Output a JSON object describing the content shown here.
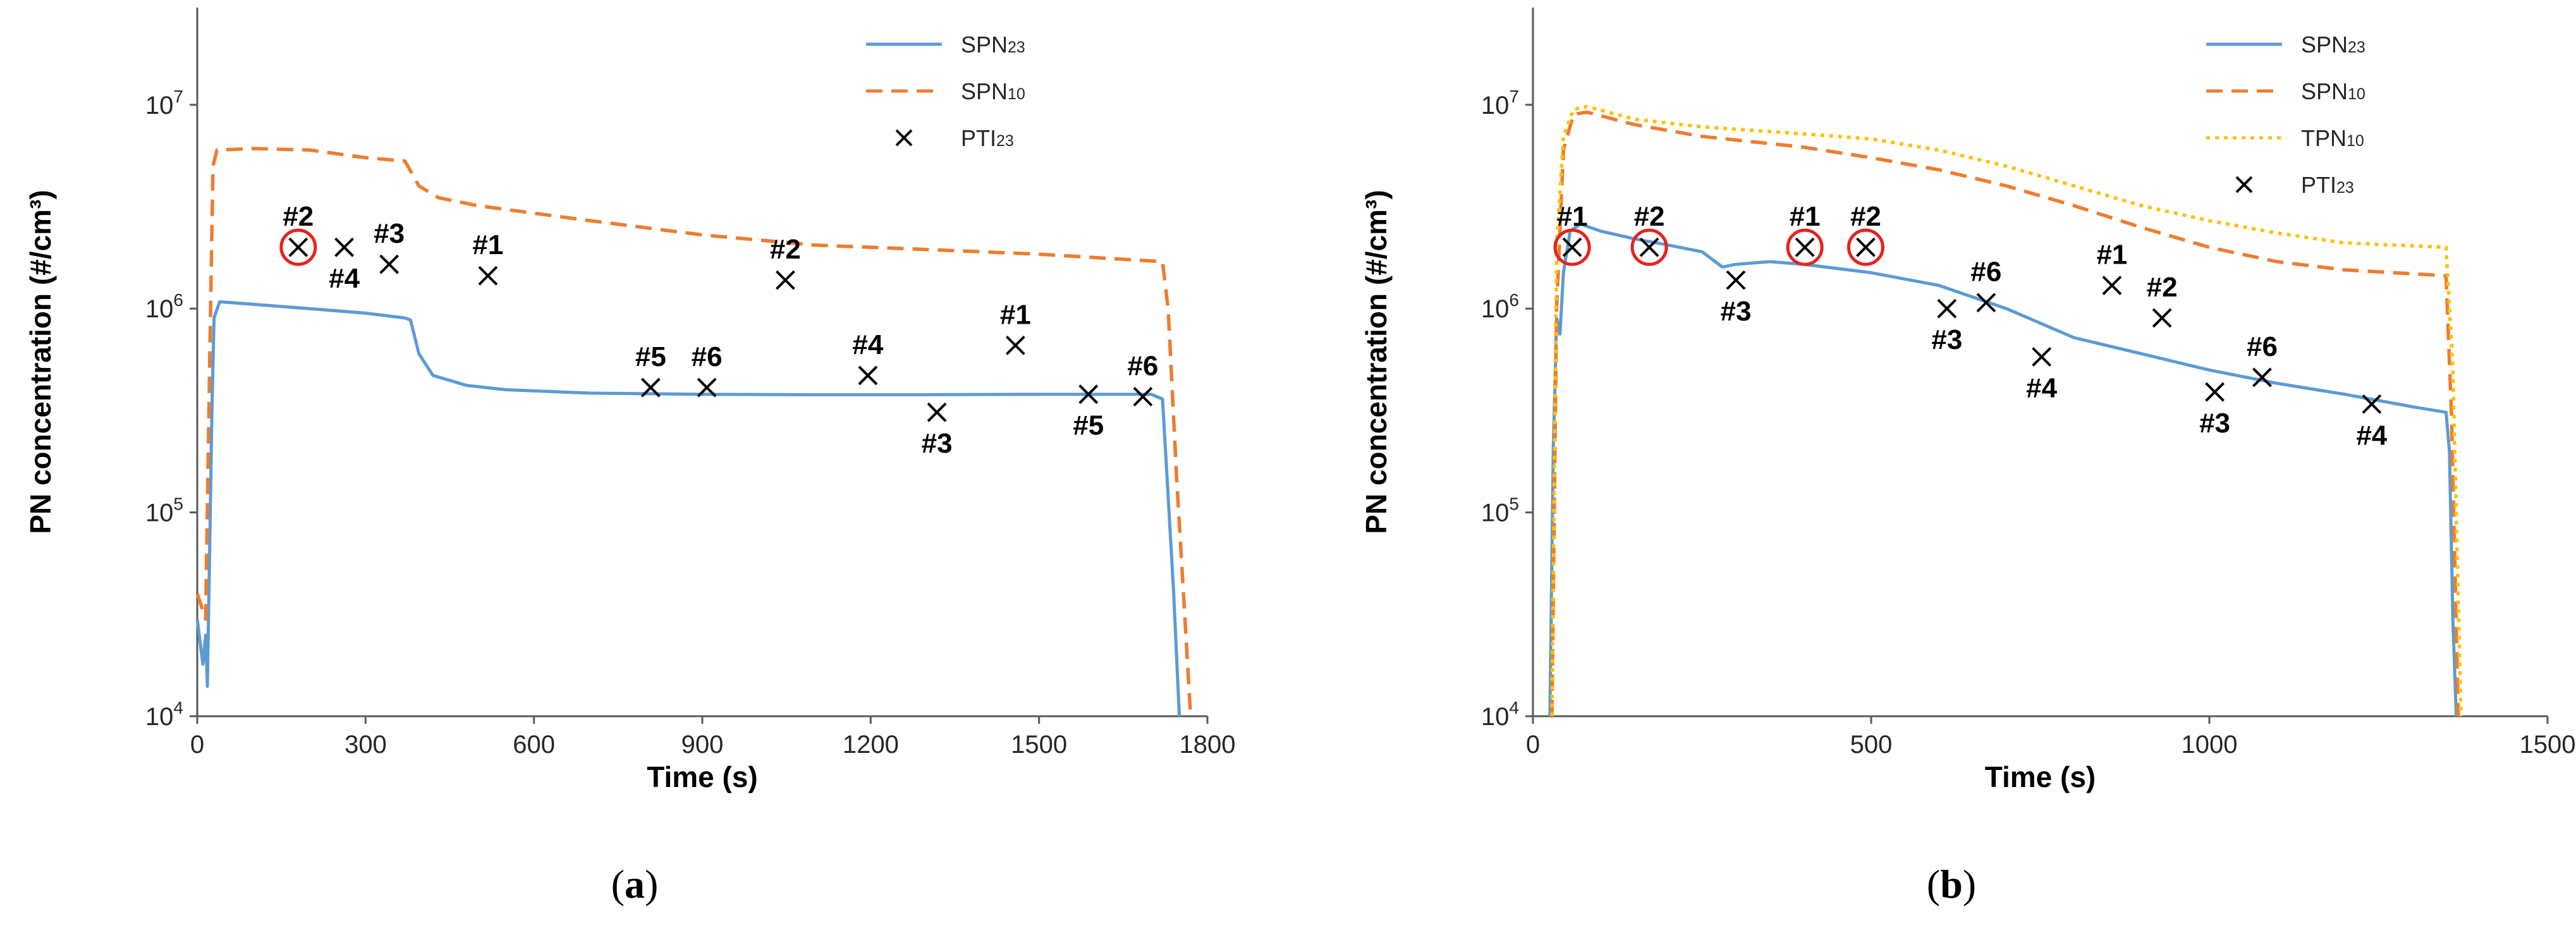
{
  "chart_data": [
    {
      "type": "line",
      "panel_label": "a",
      "xlabel": "Time (s)",
      "ylabel": "PN concentration (#/cm³)",
      "xlim": [
        0,
        1800
      ],
      "ylim": [
        10000,
        30000000
      ],
      "yscale": "log",
      "x_ticks": [
        0,
        300,
        600,
        900,
        1200,
        1500,
        1800
      ],
      "y_ticks": [
        10000,
        100000,
        1000000,
        10000000
      ],
      "y_tick_labels": [
        {
          "base": "10",
          "exp": "4"
        },
        {
          "base": "10",
          "exp": "5"
        },
        {
          "base": "10",
          "exp": "6"
        },
        {
          "base": "10",
          "exp": "7"
        }
      ],
      "legend": [
        {
          "key": "spn23",
          "main": "SPN",
          "sub": "23"
        },
        {
          "key": "spn10",
          "main": "SPN",
          "sub": "10"
        },
        {
          "key": "pti23",
          "main": "PTI",
          "sub": "23"
        }
      ],
      "series": [
        {
          "name": "SPN23",
          "key": "spn23",
          "color": "#5b9bd5",
          "style": "solid",
          "points": [
            [
              0,
              30000
            ],
            [
              10,
              18000
            ],
            [
              15,
              25000
            ],
            [
              18,
              14000
            ],
            [
              22,
              60000
            ],
            [
              26,
              300000
            ],
            [
              30,
              900000
            ],
            [
              40,
              1080000
            ],
            [
              100,
              1050000
            ],
            [
              200,
              1000000
            ],
            [
              300,
              950000
            ],
            [
              370,
              900000
            ],
            [
              380,
              880000
            ],
            [
              395,
              600000
            ],
            [
              420,
              470000
            ],
            [
              480,
              420000
            ],
            [
              550,
              400000
            ],
            [
              700,
              385000
            ],
            [
              900,
              380000
            ],
            [
              1100,
              378000
            ],
            [
              1300,
              378000
            ],
            [
              1500,
              380000
            ],
            [
              1650,
              380000
            ],
            [
              1700,
              380000
            ],
            [
              1720,
              360000
            ],
            [
              1728,
              150000
            ],
            [
              1740,
              40000
            ],
            [
              1750,
              10000
            ]
          ]
        },
        {
          "name": "SPN10",
          "key": "spn10",
          "color": "#ed7d31",
          "style": "dashed",
          "points": [
            [
              0,
              40000
            ],
            [
              15,
              30000
            ],
            [
              22,
              500000
            ],
            [
              28,
              5000000
            ],
            [
              35,
              6000000
            ],
            [
              100,
              6100000
            ],
            [
              200,
              6000000
            ],
            [
              300,
              5500000
            ],
            [
              370,
              5300000
            ],
            [
              395,
              4000000
            ],
            [
              430,
              3500000
            ],
            [
              500,
              3200000
            ],
            [
              700,
              2700000
            ],
            [
              900,
              2300000
            ],
            [
              1100,
              2050000
            ],
            [
              1300,
              1950000
            ],
            [
              1500,
              1850000
            ],
            [
              1720,
              1700000
            ],
            [
              1730,
              1000000
            ],
            [
              1745,
              150000
            ],
            [
              1760,
              30000
            ],
            [
              1770,
              10000
            ]
          ]
        }
      ],
      "markers": [
        {
          "x": 180,
          "y": 2000000,
          "label": "#2",
          "circled": true
        },
        {
          "x": 262,
          "y": 2000000,
          "label": "#4",
          "circled": false
        },
        {
          "x": 342,
          "y": 1650000,
          "label": "#3",
          "circled": false
        },
        {
          "x": 518,
          "y": 1450000,
          "label": "#1",
          "circled": false
        },
        {
          "x": 808,
          "y": 410000,
          "label": "#5",
          "circled": false
        },
        {
          "x": 908,
          "y": 410000,
          "label": "#6",
          "circled": false
        },
        {
          "x": 1048,
          "y": 1380000,
          "label": "#2",
          "circled": false
        },
        {
          "x": 1195,
          "y": 470000,
          "label": "#4",
          "circled": false
        },
        {
          "x": 1318,
          "y": 310000,
          "label": "#3",
          "circled": false
        },
        {
          "x": 1458,
          "y": 660000,
          "label": "#1",
          "circled": false
        },
        {
          "x": 1588,
          "y": 380000,
          "label": "#5",
          "circled": false
        },
        {
          "x": 1685,
          "y": 370000,
          "label": "#6",
          "circled": false
        }
      ]
    },
    {
      "type": "line",
      "panel_label": "b",
      "xlabel": "Time (s)",
      "ylabel": "PN concentration (#/cm³)",
      "xlim": [
        0,
        1500
      ],
      "ylim": [
        10000,
        30000000
      ],
      "yscale": "log",
      "x_ticks": [
        0,
        500,
        1000,
        1500
      ],
      "y_ticks": [
        10000,
        100000,
        1000000,
        10000000
      ],
      "y_tick_labels": [
        {
          "base": "10",
          "exp": "4"
        },
        {
          "base": "10",
          "exp": "5"
        },
        {
          "base": "10",
          "exp": "6"
        },
        {
          "base": "10",
          "exp": "7"
        }
      ],
      "legend": [
        {
          "key": "spn23",
          "main": "SPN",
          "sub": "23"
        },
        {
          "key": "spn10",
          "main": "SPN",
          "sub": "10"
        },
        {
          "key": "tpn10",
          "main": "TPN",
          "sub": "10"
        },
        {
          "key": "pti23",
          "main": "PTI",
          "sub": "23"
        }
      ],
      "series": [
        {
          "name": "SPN23",
          "key": "spn23",
          "color": "#5b9bd5",
          "style": "solid",
          "points": [
            [
              25,
              10000
            ],
            [
              30,
              200000
            ],
            [
              35,
              900000
            ],
            [
              40,
              750000
            ],
            [
              45,
              1500000
            ],
            [
              55,
              2400000
            ],
            [
              70,
              2600000
            ],
            [
              100,
              2400000
            ],
            [
              150,
              2200000
            ],
            [
              200,
              2050000
            ],
            [
              250,
              1900000
            ],
            [
              280,
              1600000
            ],
            [
              300,
              1650000
            ],
            [
              350,
              1700000
            ],
            [
              400,
              1650000
            ],
            [
              500,
              1500000
            ],
            [
              600,
              1300000
            ],
            [
              700,
              1000000
            ],
            [
              800,
              720000
            ],
            [
              900,
              600000
            ],
            [
              1000,
              500000
            ],
            [
              1100,
              430000
            ],
            [
              1200,
              380000
            ],
            [
              1300,
              330000
            ],
            [
              1350,
              310000
            ],
            [
              1355,
              200000
            ],
            [
              1360,
              30000
            ],
            [
              1365,
              10000
            ]
          ]
        },
        {
          "name": "SPN10",
          "key": "spn10",
          "color": "#ed7d31",
          "style": "dashed",
          "points": [
            [
              28,
              10000
            ],
            [
              35,
              1000000
            ],
            [
              45,
              6000000
            ],
            [
              60,
              9000000
            ],
            [
              80,
              9200000
            ],
            [
              150,
              8000000
            ],
            [
              250,
              7000000
            ],
            [
              400,
              6200000
            ],
            [
              500,
              5500000
            ],
            [
              600,
              4800000
            ],
            [
              700,
              4000000
            ],
            [
              800,
              3200000
            ],
            [
              900,
              2500000
            ],
            [
              1000,
              2000000
            ],
            [
              1100,
              1700000
            ],
            [
              1200,
              1550000
            ],
            [
              1350,
              1450000
            ],
            [
              1358,
              300000
            ],
            [
              1368,
              10000
            ]
          ]
        },
        {
          "name": "TPN10",
          "key": "tpn10",
          "color": "#ffc000",
          "style": "dotted",
          "points": [
            [
              28,
              10000
            ],
            [
              35,
              2000000
            ],
            [
              45,
              7000000
            ],
            [
              60,
              9500000
            ],
            [
              80,
              9800000
            ],
            [
              150,
              8500000
            ],
            [
              250,
              7800000
            ],
            [
              400,
              7200000
            ],
            [
              500,
              6800000
            ],
            [
              600,
              6000000
            ],
            [
              700,
              5000000
            ],
            [
              800,
              4000000
            ],
            [
              900,
              3200000
            ],
            [
              1000,
              2700000
            ],
            [
              1100,
              2350000
            ],
            [
              1200,
              2100000
            ],
            [
              1350,
              2000000
            ],
            [
              1360,
              500000
            ],
            [
              1372,
              10000
            ]
          ]
        }
      ],
      "markers": [
        {
          "x": 58,
          "y": 2000000,
          "label": "#1",
          "circled": true
        },
        {
          "x": 172,
          "y": 2000000,
          "label": "#2",
          "circled": true
        },
        {
          "x": 402,
          "y": 2000000,
          "label": "#1",
          "circled": true
        },
        {
          "x": 492,
          "y": 2000000,
          "label": "#2",
          "circled": true
        },
        {
          "x": 300,
          "y": 1380000,
          "label": "#3",
          "circled": false
        },
        {
          "x": 612,
          "y": 1000000,
          "label": "#3",
          "circled": false
        },
        {
          "x": 670,
          "y": 1070000,
          "label": "#6",
          "circled": false
        },
        {
          "x": 752,
          "y": 580000,
          "label": "#4",
          "circled": false
        },
        {
          "x": 856,
          "y": 1300000,
          "label": "#1",
          "circled": false
        },
        {
          "x": 930,
          "y": 900000,
          "label": "#2",
          "circled": false
        },
        {
          "x": 1008,
          "y": 390000,
          "label": "#3",
          "circled": false
        },
        {
          "x": 1078,
          "y": 460000,
          "label": "#6",
          "circled": false
        },
        {
          "x": 1240,
          "y": 340000,
          "label": "#4",
          "circled": false
        }
      ]
    }
  ]
}
